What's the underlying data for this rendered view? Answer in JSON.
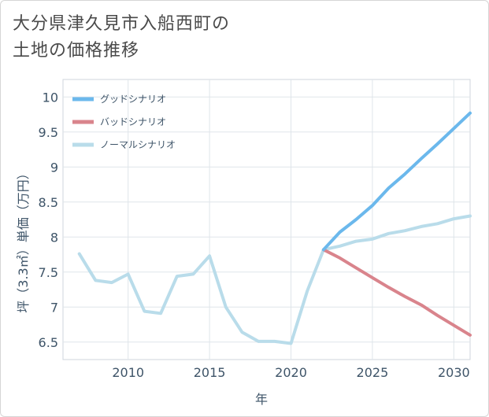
{
  "title_line1": "大分県津久見市入船西町の",
  "title_line2": "土地の価格推移",
  "chart_data": {
    "type": "line",
    "title": "大分県津久見市入船西町の土地の価格推移",
    "xlabel": "年",
    "ylabel": "坪（3.3㎡）単価（万円）",
    "xlim": [
      2006,
      2031
    ],
    "ylim": [
      6.25,
      10.25
    ],
    "x_ticks": [
      2010,
      2015,
      2020,
      2025,
      2030
    ],
    "y_ticks": [
      6.5,
      7,
      7.5,
      8,
      8.5,
      9,
      9.5,
      10
    ],
    "grid": true,
    "legend_position": "top-left",
    "series": [
      {
        "name": "グッドシナリオ",
        "color": "#6bb8ec",
        "x": [
          2022,
          2023,
          2024,
          2025,
          2026,
          2027,
          2028,
          2029,
          2030,
          2031
        ],
        "values": [
          7.82,
          8.07,
          8.25,
          8.45,
          8.7,
          8.9,
          9.12,
          9.33,
          9.55,
          9.77
        ]
      },
      {
        "name": "バッドシナリオ",
        "color": "#d9848c",
        "x": [
          2022,
          2023,
          2024,
          2025,
          2026,
          2027,
          2028,
          2029,
          2030,
          2031
        ],
        "values": [
          7.82,
          7.7,
          7.56,
          7.42,
          7.28,
          7.15,
          7.03,
          6.88,
          6.74,
          6.6
        ]
      },
      {
        "name": "ノーマルシナリオ",
        "color": "#b9dcea",
        "x": [
          2007,
          2008,
          2009,
          2010,
          2011,
          2012,
          2013,
          2014,
          2015,
          2016,
          2017,
          2018,
          2019,
          2020,
          2021,
          2022,
          2023,
          2024,
          2025,
          2026,
          2027,
          2028,
          2029,
          2030,
          2031
        ],
        "values": [
          7.76,
          7.38,
          7.35,
          7.47,
          6.94,
          6.91,
          7.44,
          7.47,
          7.73,
          7.0,
          6.64,
          6.51,
          6.51,
          6.48,
          7.23,
          7.82,
          7.87,
          7.94,
          7.97,
          8.05,
          8.09,
          8.15,
          8.19,
          8.26,
          8.3
        ]
      }
    ]
  }
}
